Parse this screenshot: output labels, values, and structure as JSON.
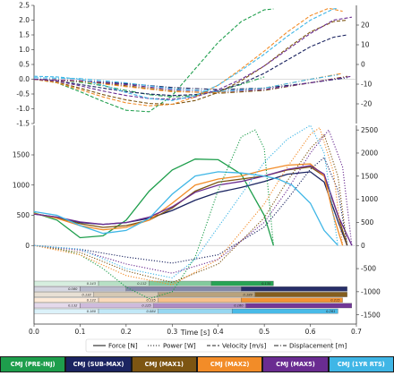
{
  "chart_data": [
    {
      "type": "line",
      "panel": "top",
      "left_ylim": [
        -1.5,
        2.5
      ],
      "right_ylim": [
        -30,
        30
      ],
      "left_ticks": [
        "2.5",
        "2.0",
        "1.5",
        "1.0",
        "0.5",
        "0.0",
        "-0.5",
        "-1.0",
        "-1.5"
      ],
      "right_ticks": [
        "20",
        "10",
        "0",
        "-10",
        "-20"
      ],
      "xlim": [
        0,
        0.7
      ],
      "grid": false,
      "series": [
        {
          "trial": "CMJ (PRE-INJ)",
          "color": "#1e9e4c",
          "kind": "velocity",
          "x": [
            0,
            0.05,
            0.1,
            0.15,
            0.2,
            0.25,
            0.3,
            0.35,
            0.4,
            0.45,
            0.5,
            0.52
          ],
          "y": [
            0,
            -0.12,
            -0.42,
            -0.75,
            -1.05,
            -1.1,
            -0.55,
            0.35,
            1.25,
            1.95,
            2.35,
            2.38
          ]
        },
        {
          "trial": "CMJ (PRE-INJ)",
          "color": "#1e9e4c",
          "kind": "displacement",
          "x": [
            0,
            0.05,
            0.1,
            0.15,
            0.2,
            0.25,
            0.3,
            0.35,
            0.4,
            0.45,
            0.5
          ],
          "y": [
            0,
            -0.02,
            -0.1,
            -0.22,
            -0.38,
            -0.52,
            -0.6,
            -0.55,
            -0.4,
            -0.18,
            0.08
          ]
        },
        {
          "trial": "CMJ (SUB-MAX)",
          "color": "#1b2461",
          "kind": "velocity",
          "x": [
            0,
            0.05,
            0.1,
            0.15,
            0.2,
            0.25,
            0.3,
            0.35,
            0.4,
            0.45,
            0.5,
            0.55,
            0.6,
            0.65,
            0.68
          ],
          "y": [
            0,
            -0.05,
            -0.18,
            -0.3,
            -0.42,
            -0.5,
            -0.55,
            -0.52,
            -0.4,
            -0.15,
            0.2,
            0.65,
            1.1,
            1.42,
            1.5
          ]
        },
        {
          "trial": "CMJ (SUB-MAX)",
          "color": "#1b2461",
          "kind": "displacement",
          "x": [
            0,
            0.1,
            0.2,
            0.3,
            0.4,
            0.5,
            0.6,
            0.68
          ],
          "y": [
            0,
            -0.05,
            -0.15,
            -0.28,
            -0.35,
            -0.3,
            -0.12,
            0.05
          ]
        },
        {
          "trial": "CMJ (MAX1)",
          "color": "#7d5512",
          "kind": "velocity",
          "x": [
            0,
            0.05,
            0.1,
            0.15,
            0.2,
            0.25,
            0.3,
            0.35,
            0.4,
            0.45,
            0.5,
            0.55,
            0.6,
            0.65,
            0.68
          ],
          "y": [
            0,
            -0.1,
            -0.3,
            -0.52,
            -0.7,
            -0.82,
            -0.85,
            -0.72,
            -0.45,
            -0.05,
            0.45,
            1.05,
            1.6,
            1.95,
            2.0
          ]
        },
        {
          "trial": "CMJ (MAX1)",
          "color": "#7d5512",
          "kind": "displacement",
          "x": [
            0,
            0.1,
            0.2,
            0.3,
            0.4,
            0.5,
            0.6,
            0.68
          ],
          "y": [
            0,
            -0.06,
            -0.22,
            -0.4,
            -0.48,
            -0.38,
            -0.12,
            0.1
          ]
        },
        {
          "trial": "CMJ (MAX2)",
          "color": "#f28c28",
          "kind": "velocity",
          "x": [
            0,
            0.05,
            0.1,
            0.15,
            0.2,
            0.25,
            0.3,
            0.35,
            0.4,
            0.45,
            0.5,
            0.55,
            0.6,
            0.64,
            0.67
          ],
          "y": [
            0,
            -0.12,
            -0.35,
            -0.6,
            -0.8,
            -0.9,
            -0.85,
            -0.6,
            -0.2,
            0.35,
            0.95,
            1.6,
            2.15,
            2.4,
            2.3
          ]
        },
        {
          "trial": "CMJ (MAX2)",
          "color": "#f28c28",
          "kind": "displacement",
          "x": [
            0,
            0.1,
            0.2,
            0.3,
            0.4,
            0.5,
            0.6,
            0.67
          ],
          "y": [
            0,
            -0.07,
            -0.25,
            -0.42,
            -0.45,
            -0.3,
            0.0,
            0.2
          ]
        },
        {
          "trial": "CMJ (MAX5)",
          "color": "#6a2c91",
          "kind": "velocity",
          "x": [
            0,
            0.05,
            0.1,
            0.15,
            0.2,
            0.25,
            0.3,
            0.35,
            0.4,
            0.45,
            0.5,
            0.55,
            0.6,
            0.65,
            0.69
          ],
          "y": [
            0,
            -0.06,
            -0.22,
            -0.4,
            -0.55,
            -0.65,
            -0.68,
            -0.6,
            -0.35,
            0.0,
            0.45,
            1.0,
            1.55,
            2.0,
            2.1
          ]
        },
        {
          "trial": "CMJ (MAX5)",
          "color": "#6a2c91",
          "kind": "displacement",
          "x": [
            0,
            0.1,
            0.2,
            0.3,
            0.4,
            0.5,
            0.6,
            0.69
          ],
          "y": [
            0,
            -0.05,
            -0.18,
            -0.35,
            -0.42,
            -0.35,
            -0.12,
            0.1
          ]
        },
        {
          "trial": "CMJ (1YR RTS)",
          "color": "#3fb6e6",
          "kind": "velocity",
          "x": [
            0,
            0.05,
            0.1,
            0.15,
            0.2,
            0.25,
            0.3,
            0.35,
            0.4,
            0.45,
            0.5,
            0.55,
            0.6,
            0.65,
            0.66
          ],
          "y": [
            0.1,
            0.08,
            0.0,
            -0.2,
            -0.45,
            -0.65,
            -0.72,
            -0.55,
            -0.2,
            0.3,
            0.85,
            1.45,
            2.0,
            2.38,
            2.4
          ]
        },
        {
          "trial": "CMJ (1YR RTS)",
          "color": "#3fb6e6",
          "kind": "displacement",
          "x": [
            0,
            0.1,
            0.2,
            0.3,
            0.4,
            0.5,
            0.6,
            0.66
          ],
          "y": [
            0.05,
            0.02,
            -0.12,
            -0.32,
            -0.42,
            -0.3,
            0.0,
            0.15
          ]
        }
      ]
    },
    {
      "type": "line",
      "panel": "bottom",
      "left_ticks": [
        "1500",
        "1000",
        "500",
        "0"
      ],
      "right_ticks": [
        "2500",
        "2000",
        "1500",
        "1000",
        "500",
        "0",
        "-500",
        "-1000",
        "-1500"
      ],
      "right_ylim": [
        -1700,
        2600
      ],
      "xlim": [
        0,
        0.7
      ],
      "x_ticks": [
        "0.0",
        "0.1",
        "0.2",
        "0.3",
        "0.4",
        "0.5",
        "0.6",
        "0.7"
      ],
      "xlabel": "Time [s]",
      "series": [
        {
          "trial": "CMJ (PRE-INJ)",
          "color": "#1e9e4c",
          "kind": "force",
          "x": [
            0,
            0.05,
            0.1,
            0.15,
            0.2,
            0.25,
            0.3,
            0.35,
            0.4,
            0.45,
            0.5,
            0.52
          ],
          "y": [
            540,
            420,
            130,
            160,
            420,
            900,
            1250,
            1430,
            1420,
            1180,
            500,
            0
          ]
        },
        {
          "trial": "CMJ (SUB-MAX)",
          "color": "#1b2461",
          "kind": "force",
          "x": [
            0,
            0.05,
            0.1,
            0.15,
            0.2,
            0.25,
            0.3,
            0.35,
            0.4,
            0.45,
            0.5,
            0.55,
            0.6,
            0.63,
            0.66,
            0.68
          ],
          "y": [
            520,
            470,
            380,
            350,
            380,
            450,
            580,
            750,
            880,
            960,
            1060,
            1180,
            1220,
            1050,
            400,
            0
          ]
        },
        {
          "trial": "CMJ (MAX1)",
          "color": "#7d5512",
          "kind": "force",
          "x": [
            0,
            0.05,
            0.1,
            0.15,
            0.2,
            0.25,
            0.3,
            0.35,
            0.4,
            0.45,
            0.5,
            0.55,
            0.6,
            0.63,
            0.66,
            0.68
          ],
          "y": [
            530,
            460,
            360,
            300,
            330,
            420,
            620,
            900,
            1050,
            1100,
            1150,
            1250,
            1300,
            1150,
            500,
            0
          ]
        },
        {
          "trial": "CMJ (MAX2)",
          "color": "#f28c28",
          "kind": "force",
          "x": [
            0,
            0.05,
            0.1,
            0.15,
            0.2,
            0.25,
            0.3,
            0.35,
            0.4,
            0.45,
            0.5,
            0.55,
            0.6,
            0.63,
            0.65,
            0.67
          ],
          "y": [
            530,
            450,
            330,
            260,
            300,
            420,
            700,
            1000,
            1100,
            1150,
            1250,
            1330,
            1350,
            1150,
            500,
            0
          ]
        },
        {
          "trial": "CMJ (MAX5)",
          "color": "#6a2c91",
          "kind": "force",
          "x": [
            0,
            0.05,
            0.1,
            0.15,
            0.2,
            0.25,
            0.3,
            0.35,
            0.4,
            0.45,
            0.5,
            0.55,
            0.6,
            0.63,
            0.66,
            0.69
          ],
          "y": [
            520,
            470,
            390,
            350,
            380,
            470,
            640,
            880,
            1000,
            1060,
            1150,
            1260,
            1320,
            1180,
            500,
            0
          ]
        },
        {
          "trial": "CMJ (1YR RTS)",
          "color": "#3fb6e6",
          "kind": "force",
          "x": [
            0,
            0.05,
            0.1,
            0.15,
            0.2,
            0.25,
            0.3,
            0.35,
            0.4,
            0.45,
            0.5,
            0.53,
            0.56,
            0.6,
            0.63,
            0.66
          ],
          "y": [
            560,
            500,
            330,
            200,
            250,
            450,
            850,
            1150,
            1220,
            1200,
            1150,
            1100,
            1000,
            700,
            250,
            0
          ]
        },
        {
          "trial": "CMJ (PRE-INJ)",
          "color": "#1e9e4c",
          "kind": "power",
          "x": [
            0,
            0.05,
            0.1,
            0.15,
            0.2,
            0.25,
            0.3,
            0.35,
            0.4,
            0.45,
            0.48,
            0.5,
            0.52
          ],
          "y": [
            0,
            -60,
            -200,
            -500,
            -900,
            -1150,
            -1000,
            -250,
            1200,
            2350,
            2500,
            2100,
            0
          ]
        },
        {
          "trial": "CMJ (SUB-MAX)",
          "color": "#1b2461",
          "kind": "power",
          "x": [
            0,
            0.1,
            0.2,
            0.3,
            0.4,
            0.5,
            0.55,
            0.6,
            0.63,
            0.66,
            0.68
          ],
          "y": [
            0,
            -80,
            -250,
            -380,
            -200,
            400,
            1000,
            1650,
            1900,
            1200,
            0
          ]
        },
        {
          "trial": "CMJ (MAX1)",
          "color": "#7d5512",
          "kind": "power",
          "x": [
            0,
            0.1,
            0.2,
            0.3,
            0.4,
            0.5,
            0.55,
            0.6,
            0.63,
            0.66,
            0.68
          ],
          "y": [
            0,
            -150,
            -550,
            -800,
            -400,
            600,
            1400,
            2100,
            2400,
            1500,
            0
          ]
        },
        {
          "trial": "CMJ (MAX2)",
          "color": "#f28c28",
          "kind": "power",
          "x": [
            0,
            0.1,
            0.2,
            0.3,
            0.4,
            0.5,
            0.55,
            0.6,
            0.62,
            0.65,
            0.67
          ],
          "y": [
            0,
            -200,
            -650,
            -850,
            -300,
            900,
            1700,
            2400,
            2550,
            1600,
            0
          ]
        },
        {
          "trial": "CMJ (MAX5)",
          "color": "#6a2c91",
          "kind": "power",
          "x": [
            0,
            0.1,
            0.2,
            0.3,
            0.4,
            0.5,
            0.55,
            0.6,
            0.64,
            0.67,
            0.69
          ],
          "y": [
            0,
            -100,
            -400,
            -600,
            -300,
            500,
            1200,
            2000,
            2500,
            1700,
            0
          ]
        },
        {
          "trial": "CMJ (1YR RTS)",
          "color": "#3fb6e6",
          "kind": "power",
          "x": [
            0,
            0.1,
            0.2,
            0.3,
            0.35,
            0.4,
            0.45,
            0.5,
            0.55,
            0.6,
            0.63,
            0.66
          ],
          "y": [
            0,
            -80,
            -500,
            -700,
            -300,
            400,
            1100,
            1800,
            2300,
            2600,
            2000,
            0
          ]
        }
      ]
    },
    {
      "type": "bar",
      "panel": "phase-bars",
      "bars": [
        {
          "trial": "CMJ (PRE-INJ)",
          "color": "#1e9e4c",
          "segments": [
            0.14,
            0.25,
            0.385,
            0.52
          ],
          "labels": [
            "0.143",
            "0.112",
            "",
            "0.135"
          ]
        },
        {
          "trial": "CMJ (SUB-MAX)",
          "color": "#1b2461",
          "segments": [
            0.1,
            0.2,
            0.45,
            0.68
          ],
          "labels": [
            "0.080",
            "",
            "",
            ""
          ]
        },
        {
          "trial": "CMJ (MAX1)",
          "color": "#7d5512",
          "segments": [
            0.13,
            0.27,
            0.48,
            0.68
          ],
          "labels": [
            "0.132",
            "",
            "0.189",
            ""
          ]
        },
        {
          "trial": "CMJ (MAX2)",
          "color": "#f28c28",
          "segments": [
            0.14,
            0.27,
            0.45,
            0.67
          ],
          "labels": [
            "0.132",
            "0.135",
            "",
            "0.215"
          ]
        },
        {
          "trial": "CMJ (MAX5)",
          "color": "#6a2c91",
          "segments": [
            0.1,
            0.26,
            0.46,
            0.69
          ],
          "labels": [
            "0.132",
            "0.125",
            "0.160",
            ""
          ]
        },
        {
          "trial": "CMJ (1YR RTS)",
          "color": "#3fb6e6",
          "segments": [
            0.14,
            0.27,
            0.43,
            0.66
          ],
          "labels": [
            "0.160",
            "0.084",
            "",
            "0.261"
          ]
        }
      ]
    }
  ],
  "legend": {
    "items": [
      {
        "label": "Force [N]",
        "dash": "solid"
      },
      {
        "label": "Power [W]",
        "dash": "dotted"
      },
      {
        "label": "Velocity [m/s]",
        "dash": "dashed"
      },
      {
        "label": "Displacement [m]",
        "dash": "dashdot"
      }
    ]
  },
  "trials": [
    {
      "label": "CMJ (PRE-INJ)",
      "color": "#1e9e4c"
    },
    {
      "label": "CMJ (SUB-MAX)",
      "color": "#1b2461"
    },
    {
      "label": "CMJ (MAX1)",
      "color": "#7d5512"
    },
    {
      "label": "CMJ (MAX2)",
      "color": "#f28c28"
    },
    {
      "label": "CMJ (MAX5)",
      "color": "#6a2c91"
    },
    {
      "label": "CMJ (1YR RTS)",
      "color": "#3fb6e6"
    }
  ]
}
